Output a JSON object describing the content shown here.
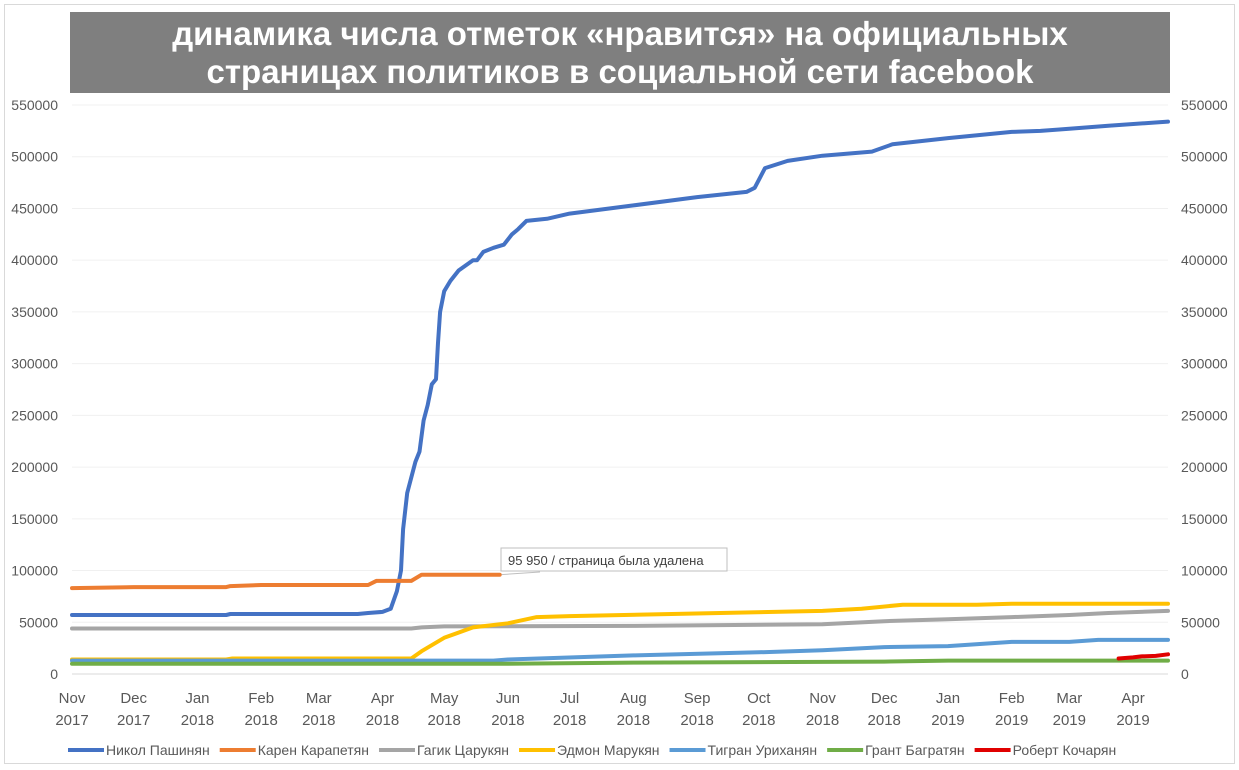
{
  "chart_data": {
    "type": "line",
    "title": "динамика числа отметок «нравится» на официальных страницах политиков в социальной сети facebook",
    "title_lines": [
      "динамика числа отметок «нравится» на официальных",
      "страницах политиков в социальной сети facebook"
    ],
    "ylim": [
      0,
      550000
    ],
    "yticks": [
      0,
      50000,
      100000,
      150000,
      200000,
      250000,
      300000,
      350000,
      400000,
      450000,
      500000,
      550000
    ],
    "ytick_labels": [
      "0",
      "50000",
      "100000",
      "150000",
      "200000",
      "250000",
      "300000",
      "350000",
      "400000",
      "450000",
      "500000",
      "550000"
    ],
    "xlim": [
      "2017-11-01",
      "2019-04-18"
    ],
    "xticks": [
      {
        "date": "2017-11-01",
        "label": [
          "Nov",
          "2017"
        ]
      },
      {
        "date": "2017-12-01",
        "label": [
          "Dec",
          "2017"
        ]
      },
      {
        "date": "2018-01-01",
        "label": [
          "Jan",
          "2018"
        ]
      },
      {
        "date": "2018-02-01",
        "label": [
          "Feb",
          "2018"
        ]
      },
      {
        "date": "2018-03-01",
        "label": [
          "Mar",
          "2018"
        ]
      },
      {
        "date": "2018-04-01",
        "label": [
          "Apr",
          "2018"
        ]
      },
      {
        "date": "2018-05-01",
        "label": [
          "May",
          "2018"
        ]
      },
      {
        "date": "2018-06-01",
        "label": [
          "Jun",
          "2018"
        ]
      },
      {
        "date": "2018-07-01",
        "label": [
          "Jul",
          "2018"
        ]
      },
      {
        "date": "2018-08-01",
        "label": [
          "Aug",
          "2018"
        ]
      },
      {
        "date": "2018-09-01",
        "label": [
          "Sep",
          "2018"
        ]
      },
      {
        "date": "2018-10-01",
        "label": [
          "Oct",
          "2018"
        ]
      },
      {
        "date": "2018-11-01",
        "label": [
          "Nov",
          "2018"
        ]
      },
      {
        "date": "2018-12-01",
        "label": [
          "Dec",
          "2018"
        ]
      },
      {
        "date": "2019-01-01",
        "label": [
          "Jan",
          "2019"
        ]
      },
      {
        "date": "2019-02-01",
        "label": [
          "Feb",
          "2019"
        ]
      },
      {
        "date": "2019-03-01",
        "label": [
          "Mar",
          "2019"
        ]
      },
      {
        "date": "2019-04-01",
        "label": [
          "Apr",
          "2019"
        ]
      }
    ],
    "grid": true,
    "secondary_y_axis": true,
    "legend_position": "bottom",
    "annotation": {
      "text": "95 950 / страница была удалена",
      "date": "2018-05-28",
      "value": 95950
    },
    "series": [
      {
        "name": "Никол Пашинян",
        "color": "#4472c4",
        "points": [
          [
            "2017-11-01",
            57000
          ],
          [
            "2018-01-15",
            57000
          ],
          [
            "2018-01-17",
            58000
          ],
          [
            "2018-03-20",
            58000
          ],
          [
            "2018-03-25",
            59000
          ],
          [
            "2018-04-01",
            60000
          ],
          [
            "2018-04-05",
            63000
          ],
          [
            "2018-04-08",
            80000
          ],
          [
            "2018-04-10",
            100000
          ],
          [
            "2018-04-11",
            140000
          ],
          [
            "2018-04-13",
            175000
          ],
          [
            "2018-04-17",
            205000
          ],
          [
            "2018-04-19",
            215000
          ],
          [
            "2018-04-21",
            245000
          ],
          [
            "2018-04-23",
            260000
          ],
          [
            "2018-04-25",
            280000
          ],
          [
            "2018-04-27",
            285000
          ],
          [
            "2018-04-28",
            320000
          ],
          [
            "2018-04-29",
            350000
          ],
          [
            "2018-05-01",
            370000
          ],
          [
            "2018-05-04",
            380000
          ],
          [
            "2018-05-08",
            390000
          ],
          [
            "2018-05-15",
            400000
          ],
          [
            "2018-05-17",
            400000
          ],
          [
            "2018-05-20",
            408000
          ],
          [
            "2018-05-25",
            412000
          ],
          [
            "2018-05-30",
            415000
          ],
          [
            "2018-06-03",
            425000
          ],
          [
            "2018-06-06",
            430000
          ],
          [
            "2018-06-10",
            438000
          ],
          [
            "2018-06-20",
            440000
          ],
          [
            "2018-07-01",
            445000
          ],
          [
            "2018-08-01",
            453000
          ],
          [
            "2018-09-01",
            461000
          ],
          [
            "2018-09-25",
            466000
          ],
          [
            "2018-09-29",
            470000
          ],
          [
            "2018-10-04",
            489000
          ],
          [
            "2018-10-15",
            496000
          ],
          [
            "2018-11-01",
            501000
          ],
          [
            "2018-11-25",
            505000
          ],
          [
            "2018-12-05",
            512000
          ],
          [
            "2019-01-01",
            518000
          ],
          [
            "2019-02-01",
            524000
          ],
          [
            "2019-02-15",
            525000
          ],
          [
            "2019-03-01",
            527000
          ],
          [
            "2019-03-20",
            530000
          ],
          [
            "2019-04-18",
            534000
          ]
        ]
      },
      {
        "name": "Карен Карапетян",
        "color": "#ed7d31",
        "points": [
          [
            "2017-11-01",
            83000
          ],
          [
            "2017-12-01",
            84000
          ],
          [
            "2018-01-15",
            84000
          ],
          [
            "2018-01-17",
            85000
          ],
          [
            "2018-02-01",
            86000
          ],
          [
            "2018-03-25",
            86000
          ],
          [
            "2018-03-29",
            90000
          ],
          [
            "2018-04-15",
            90000
          ],
          [
            "2018-04-20",
            96000
          ],
          [
            "2018-05-28",
            95950
          ]
        ]
      },
      {
        "name": "Гагик Царукян",
        "color": "#a5a5a5",
        "points": [
          [
            "2017-11-01",
            44000
          ],
          [
            "2018-04-15",
            44000
          ],
          [
            "2018-04-20",
            45000
          ],
          [
            "2018-05-01",
            46000
          ],
          [
            "2018-08-01",
            46500
          ],
          [
            "2018-11-01",
            48000
          ],
          [
            "2018-12-01",
            51000
          ],
          [
            "2019-01-01",
            53000
          ],
          [
            "2019-02-01",
            55000
          ],
          [
            "2019-03-01",
            57000
          ],
          [
            "2019-03-20",
            59000
          ],
          [
            "2019-04-18",
            61000
          ]
        ]
      },
      {
        "name": "Эдмон Марукян",
        "color": "#ffc000",
        "points": [
          [
            "2017-11-01",
            14000
          ],
          [
            "2018-01-15",
            14000
          ],
          [
            "2018-01-18",
            15000
          ],
          [
            "2018-04-15",
            15000
          ],
          [
            "2018-04-20",
            22000
          ],
          [
            "2018-05-01",
            35000
          ],
          [
            "2018-05-15",
            45000
          ],
          [
            "2018-06-01",
            49000
          ],
          [
            "2018-06-15",
            55000
          ],
          [
            "2018-07-01",
            56000
          ],
          [
            "2018-11-01",
            61000
          ],
          [
            "2018-11-20",
            63000
          ],
          [
            "2018-12-10",
            67000
          ],
          [
            "2019-01-15",
            67000
          ],
          [
            "2019-02-01",
            68000
          ],
          [
            "2019-04-18",
            68000
          ]
        ]
      },
      {
        "name": "Тигран Уриханян",
        "color": "#5b9bd5",
        "points": [
          [
            "2017-11-01",
            13000
          ],
          [
            "2018-05-25",
            13000
          ],
          [
            "2018-06-01",
            14000
          ],
          [
            "2018-08-01",
            18000
          ],
          [
            "2018-10-01",
            21000
          ],
          [
            "2018-11-01",
            23000
          ],
          [
            "2018-12-01",
            26000
          ],
          [
            "2019-01-01",
            27000
          ],
          [
            "2019-02-01",
            31000
          ],
          [
            "2019-03-01",
            31000
          ],
          [
            "2019-03-15",
            33000
          ],
          [
            "2019-04-18",
            33000
          ]
        ]
      },
      {
        "name": "Грант Багратян",
        "color": "#70ad47",
        "points": [
          [
            "2017-11-01",
            10000
          ],
          [
            "2018-06-01",
            10000
          ],
          [
            "2018-08-01",
            11000
          ],
          [
            "2018-12-01",
            12000
          ],
          [
            "2019-01-01",
            13000
          ],
          [
            "2019-04-18",
            13000
          ]
        ]
      },
      {
        "name": "Роберт Кочарян",
        "color": "#e00000",
        "points": [
          [
            "2019-03-25",
            15000
          ],
          [
            "2019-04-01",
            16000
          ],
          [
            "2019-04-05",
            17000
          ],
          [
            "2019-04-12",
            17500
          ],
          [
            "2019-04-18",
            19000
          ]
        ]
      }
    ]
  }
}
